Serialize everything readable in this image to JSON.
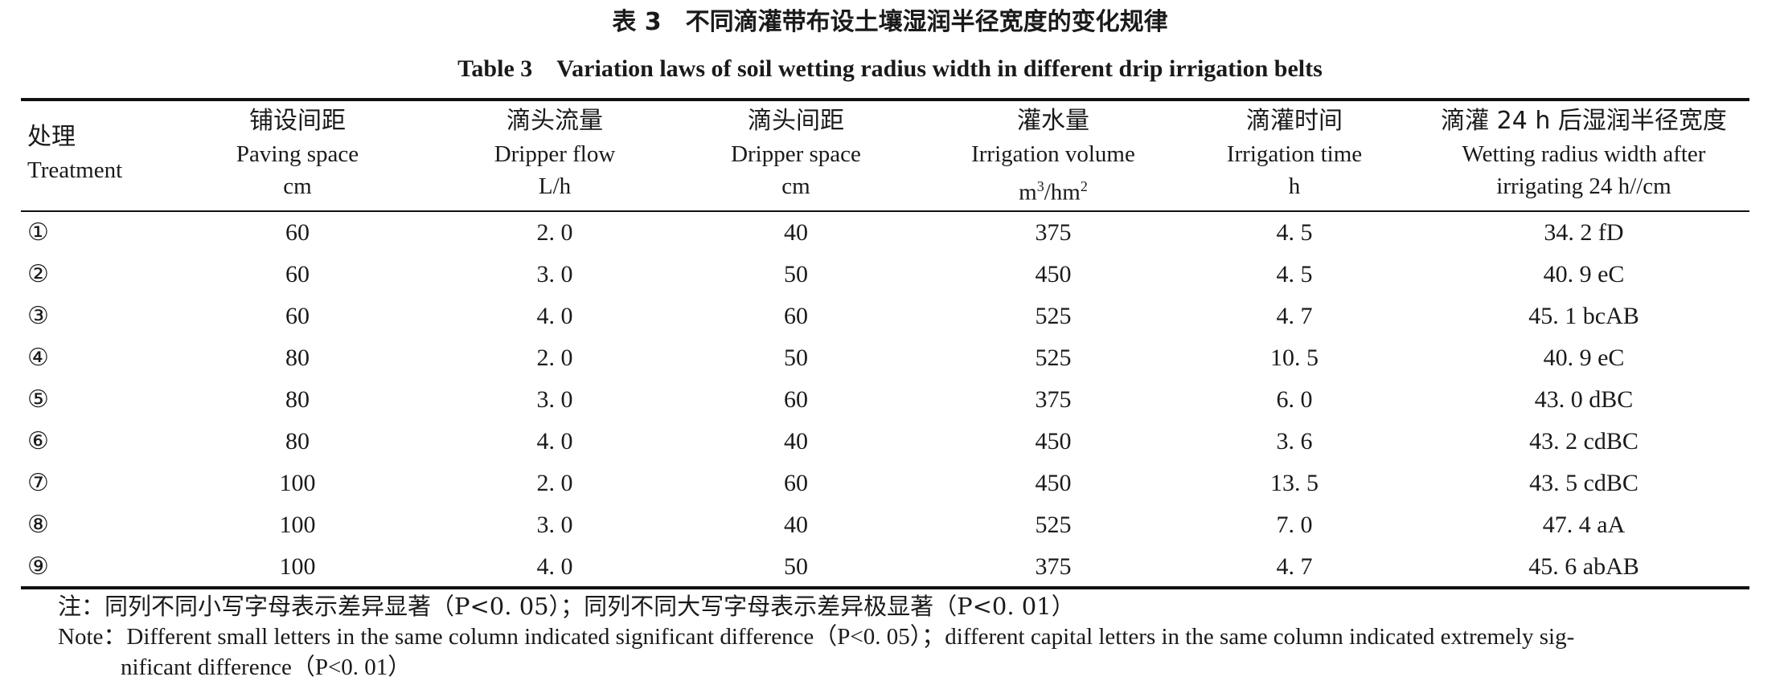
{
  "caption": {
    "cn": "表 3　不同滴灌带布设土壤湿润半径宽度的变化规律",
    "en": "Table 3　Variation laws of soil wetting radius width in different drip irrigation belts"
  },
  "headers": [
    {
      "cn": "处理",
      "en": "Treatment",
      "unit": ""
    },
    {
      "cn": "铺设间距",
      "en": "Paving space",
      "unit": "cm"
    },
    {
      "cn": "滴头流量",
      "en": "Dripper flow",
      "unit": "L/h"
    },
    {
      "cn": "滴头间距",
      "en": "Dripper space",
      "unit": "cm"
    },
    {
      "cn": "灌水量",
      "en": "Irrigation volume",
      "unit_pre": "m",
      "unit_sup1": "3",
      "unit_mid": "/hm",
      "unit_sup2": "2"
    },
    {
      "cn": "滴灌时间",
      "en": "Irrigation time",
      "unit": "h"
    },
    {
      "cn": "滴灌 24 h 后湿润半径宽度",
      "en": "Wetting radius width after",
      "unit": "irrigating 24 h//cm"
    }
  ],
  "rows": [
    [
      "①",
      "60",
      "2. 0",
      "40",
      "375",
      "4. 5",
      "34. 2 fD"
    ],
    [
      "②",
      "60",
      "3. 0",
      "50",
      "450",
      "4. 5",
      "40. 9 eC"
    ],
    [
      "③",
      "60",
      "4. 0",
      "60",
      "525",
      "4. 7",
      "45. 1 bcAB"
    ],
    [
      "④",
      "80",
      "2. 0",
      "50",
      "525",
      "10. 5",
      "40. 9 eC"
    ],
    [
      "⑤",
      "80",
      "3. 0",
      "60",
      "375",
      "6. 0",
      "43. 0 dBC"
    ],
    [
      "⑥",
      "80",
      "4. 0",
      "40",
      "450",
      "3. 6",
      "43. 2 cdBC"
    ],
    [
      "⑦",
      "100",
      "2. 0",
      "60",
      "450",
      "13. 5",
      "43. 5 cdBC"
    ],
    [
      "⑧",
      "100",
      "3. 0",
      "40",
      "525",
      "7. 0",
      "47. 4 aA"
    ],
    [
      "⑨",
      "100",
      "4. 0",
      "50",
      "375",
      "4. 7",
      "45. 6 abAB"
    ]
  ],
  "notes": {
    "cn": "注：同列不同小写字母表示差异显著（P<0. 05）；同列不同大写字母表示差异极显著（P<0. 01）",
    "en_line1": "Note：Different small letters in the same column indicated significant difference（P<0. 05）；different capital letters in the same column indicated extremely sig-",
    "en_line2": "nificant difference（P<0. 01）"
  }
}
